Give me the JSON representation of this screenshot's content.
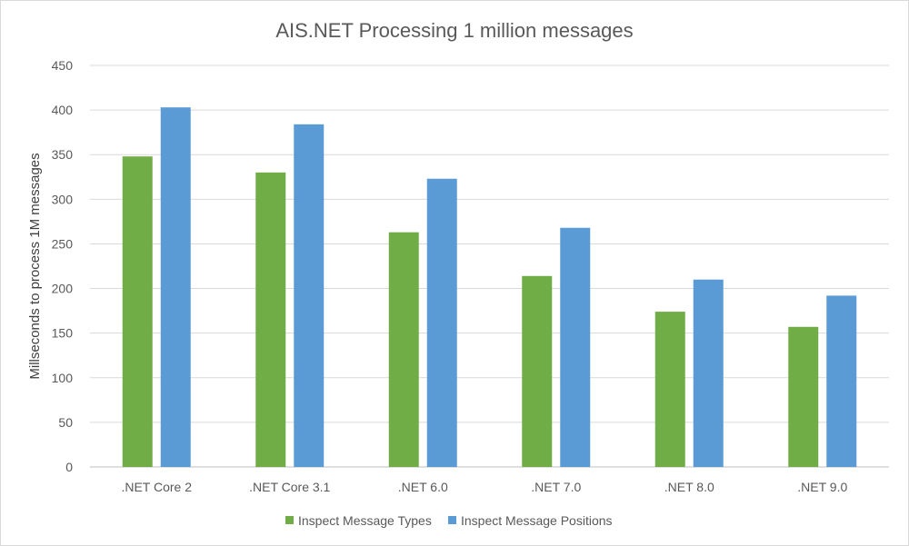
{
  "chart_data": {
    "type": "bar",
    "title": "AIS.NET Processing 1 million messages",
    "xlabel": "",
    "ylabel": "Millseconds to process 1M messages",
    "categories": [
      ".NET Core 2",
      ".NET Core 3.1",
      ".NET 6.0",
      ".NET 7.0",
      ".NET 8.0",
      ".NET 9.0"
    ],
    "series": [
      {
        "name": "Inspect Message Types",
        "color": "#70ad47",
        "values": [
          348,
          330,
          263,
          214,
          174,
          157
        ]
      },
      {
        "name": "Inspect Message Positions",
        "color": "#5b9bd5",
        "values": [
          403,
          384,
          323,
          268,
          210,
          192
        ]
      }
    ],
    "ylim": [
      0,
      450
    ],
    "yticks": [
      0,
      50,
      100,
      150,
      200,
      250,
      300,
      350,
      400,
      450
    ],
    "grid": true,
    "legend_position": "bottom"
  }
}
